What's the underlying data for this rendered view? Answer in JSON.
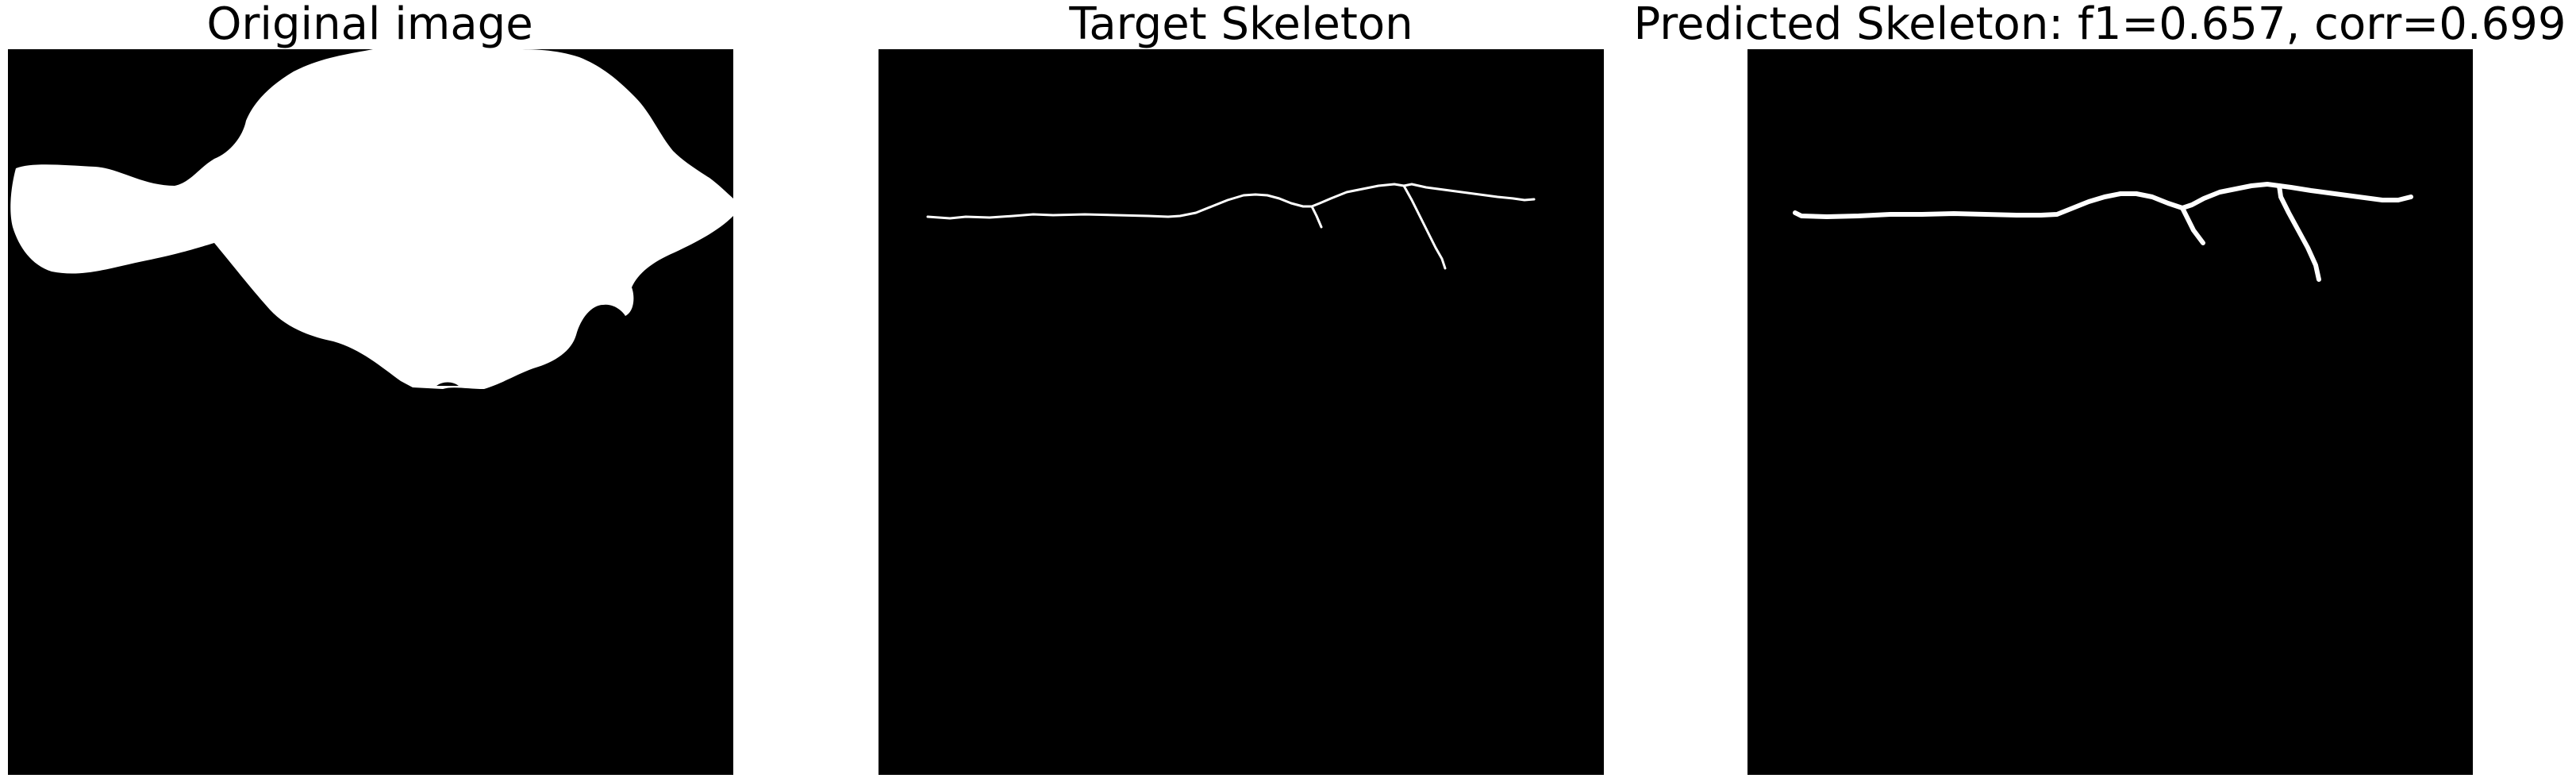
{
  "panels": [
    {
      "title": "Original image"
    },
    {
      "title": "Target Skeleton"
    },
    {
      "title": "Predicted Skeleton: f1=0.657, corr=0.699"
    }
  ],
  "colors": {
    "background": "#000000",
    "foreground": "#ffffff",
    "page": "#ffffff"
  }
}
